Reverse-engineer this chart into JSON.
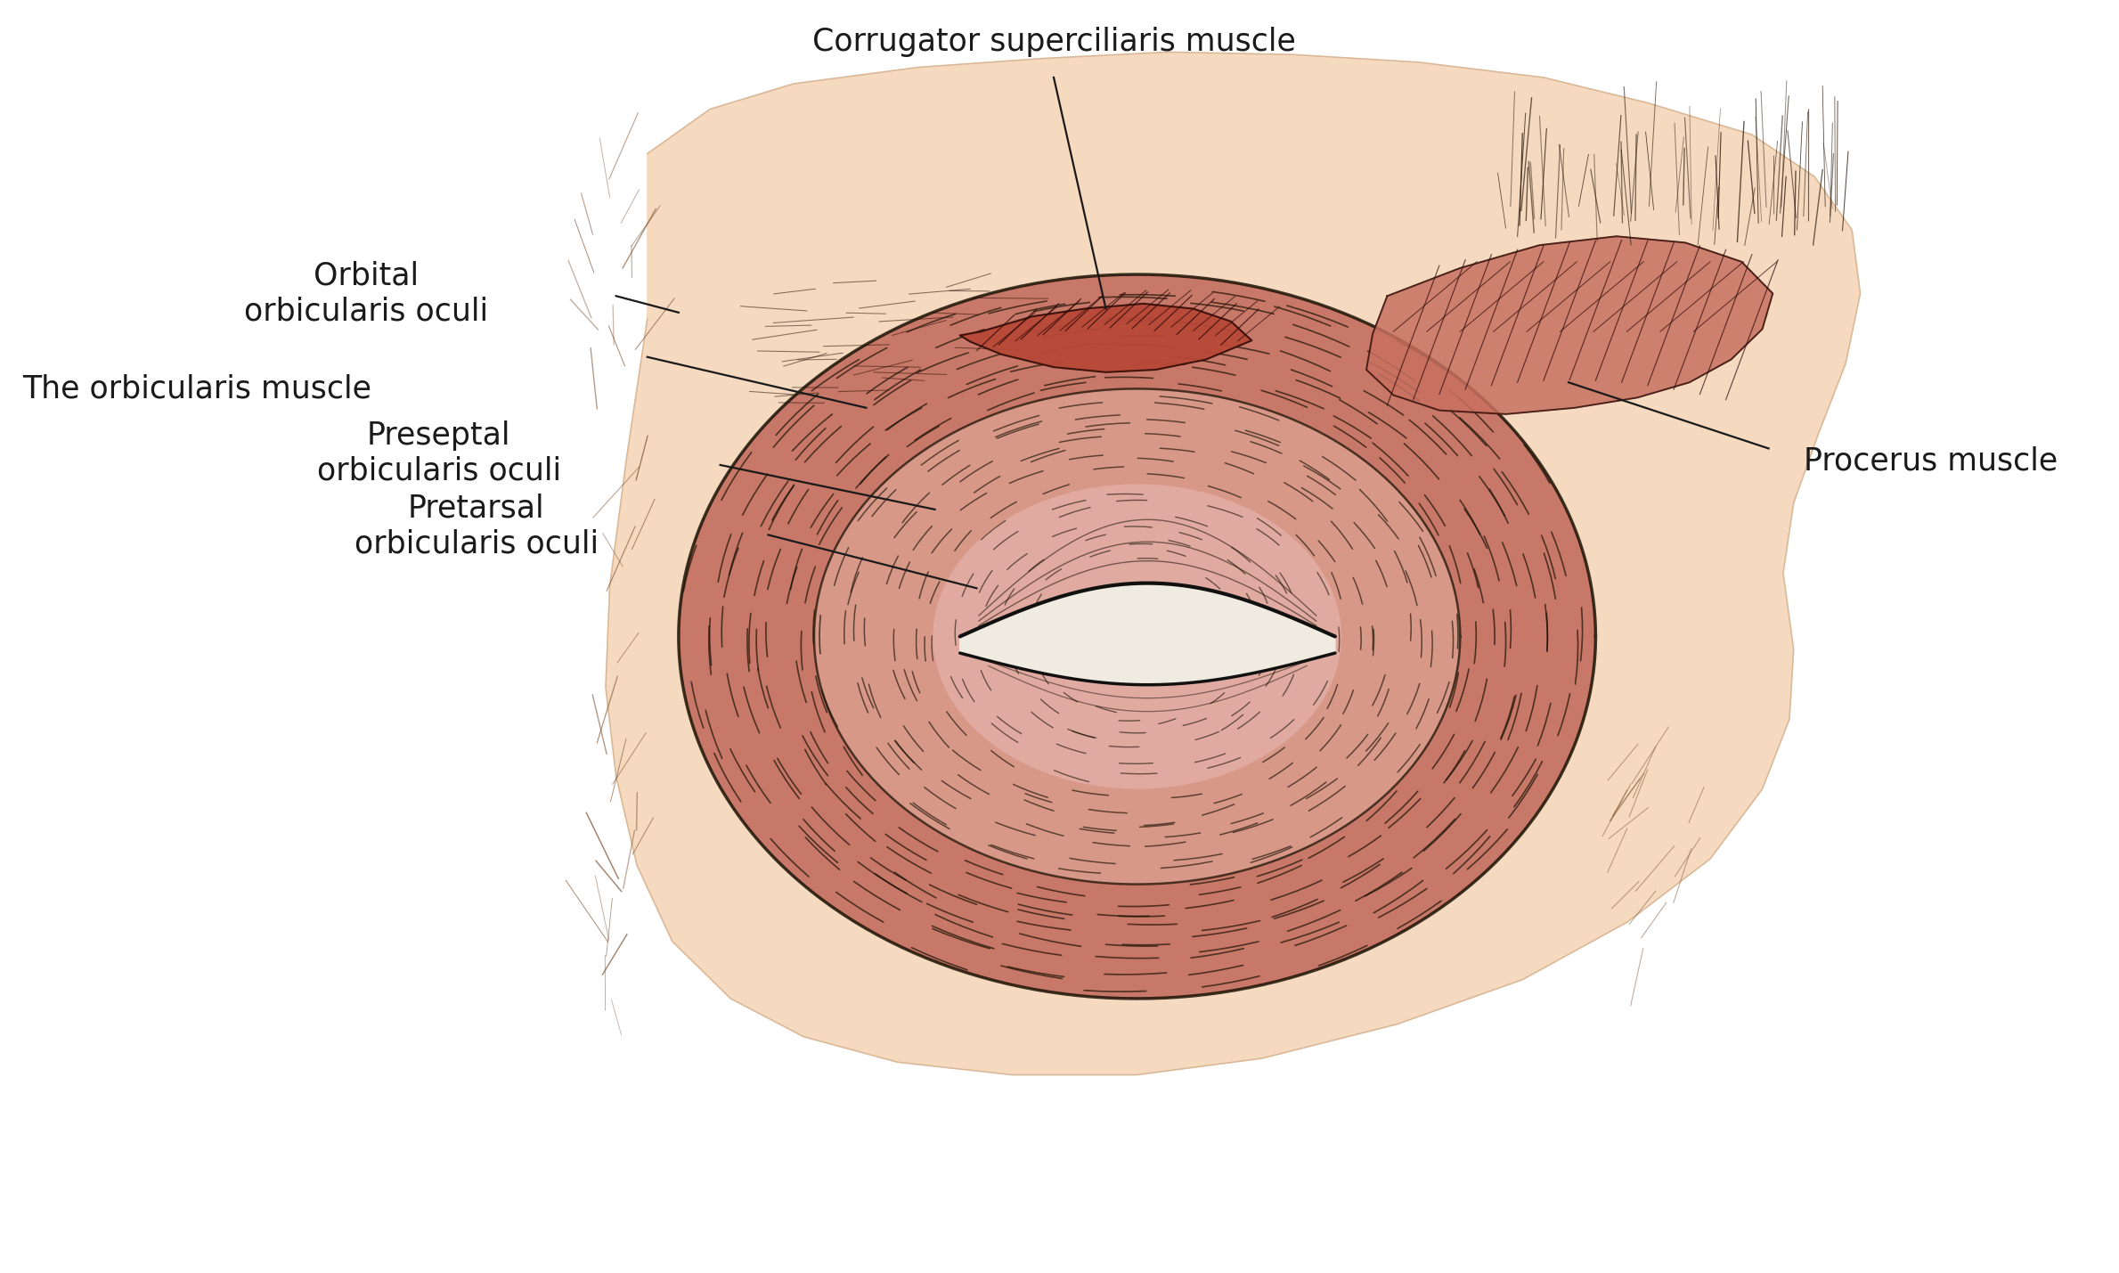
{
  "bg_color": "#ffffff",
  "skin_light": "#f5dac0",
  "skin_peach": "#f0c8a8",
  "muscle_base": "#c87868",
  "muscle_light": "#d89888",
  "muscle_lighter": "#e0aaa0",
  "muscle_dark": "#9a4838",
  "corrugator_color": "#b84838",
  "procerus_color": "#c87060",
  "line_color": "#1a1205",
  "text_color": "#1a1a1a",
  "eye_white": "#f0ebe0",
  "eyelid_fill": "#e8d8c8",
  "figsize": [
    23.79,
    14.29
  ],
  "dpi": 100,
  "labels": {
    "corrugator": "Corrugator superciliaris muscle",
    "orbicularis": "The orbicularis muscle",
    "pretarsal": "Pretarsal\norbicularis oculi",
    "preseptal": "Preseptal\norbicularis oculi",
    "orbital": "Orbital\norbicularis oculi",
    "procerus": "Procerus muscle"
  }
}
